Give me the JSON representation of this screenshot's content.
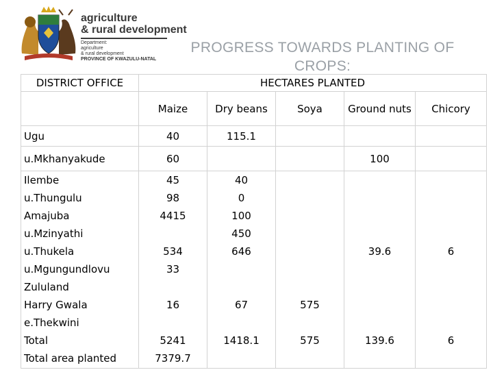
{
  "header": {
    "logo_title_line1": "agriculture",
    "logo_title_line2": "& rural development",
    "logo_sub_line1": "Department:",
    "logo_sub_line2": "agriculture",
    "logo_sub_line3": "& rural development",
    "logo_sub_line4": "PROVINCE OF KWAZULU-NATAL",
    "slide_title_line1": "PROGRESS TOWARDS PLANTING OF",
    "slide_title_line2": "CROPS:"
  },
  "table": {
    "district_header": "DISTRICT OFFICE",
    "hectares_header": "HECTARES PLANTED",
    "columns": [
      "Maize",
      "Dry beans",
      "Soya",
      "Ground nuts",
      "Chicory"
    ],
    "rows": [
      {
        "district": "Ugu",
        "maize": "40",
        "dry_beans": "115.1",
        "soya": "",
        "ground_nuts": "",
        "chicory": ""
      },
      {
        "district": "u.Mkhanyakude",
        "maize": "60",
        "dry_beans": "",
        "soya": "",
        "ground_nuts": "100",
        "chicory": ""
      },
      {
        "district": "Ilembe",
        "maize": "45",
        "dry_beans": "40",
        "soya": "",
        "ground_nuts": "",
        "chicory": ""
      },
      {
        "district": "u.Thungulu",
        "maize": "98",
        "dry_beans": "0",
        "soya": "",
        "ground_nuts": "",
        "chicory": ""
      },
      {
        "district": "Amajuba",
        "maize": "4415",
        "dry_beans": "100",
        "soya": "",
        "ground_nuts": "",
        "chicory": ""
      },
      {
        "district": "u.Mzinyathi",
        "maize": "",
        "dry_beans": "450",
        "soya": "",
        "ground_nuts": "",
        "chicory": ""
      },
      {
        "district": "u.Thukela",
        "maize": "534",
        "dry_beans": "646",
        "soya": "",
        "ground_nuts": "39.6",
        "chicory": "6"
      },
      {
        "district": "u.Mgungundlovu",
        "maize": "33",
        "dry_beans": "",
        "soya": "",
        "ground_nuts": "",
        "chicory": ""
      },
      {
        "district": "Zululand",
        "maize": "",
        "dry_beans": "",
        "soya": "",
        "ground_nuts": "",
        "chicory": ""
      },
      {
        "district": "Harry Gwala",
        "maize": "16",
        "dry_beans": "67",
        "soya": "575",
        "ground_nuts": "",
        "chicory": ""
      },
      {
        "district": "e.Thekwini",
        "maize": "",
        "dry_beans": "",
        "soya": "",
        "ground_nuts": "",
        "chicory": ""
      },
      {
        "district": "Total",
        "maize": "5241",
        "dry_beans": "1418.1",
        "soya": "575",
        "ground_nuts": "139.6",
        "chicory": "6"
      },
      {
        "district": "Total area planted",
        "maize": "7379.7",
        "dry_beans": "",
        "soya": "",
        "ground_nuts": "",
        "chicory": ""
      }
    ]
  }
}
